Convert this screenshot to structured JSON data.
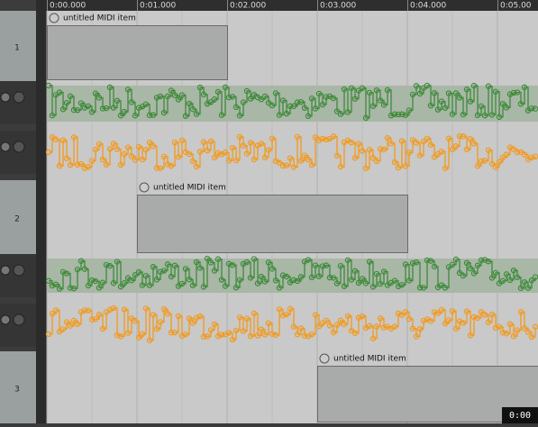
{
  "ruler": {
    "labels": [
      "0:00.000",
      "0:01.000",
      "0:02.000",
      "0:03.000",
      "0:04.000",
      "0:05.00"
    ]
  },
  "tracks": [
    {
      "number": "1",
      "item": {
        "label": "untitled MIDI item"
      }
    },
    {
      "number": "2",
      "item": {
        "label": "untitled MIDI item"
      }
    },
    {
      "number": "3",
      "item": {
        "label": "untitled MIDI item"
      }
    }
  ],
  "status": {
    "time": "0:00"
  }
}
